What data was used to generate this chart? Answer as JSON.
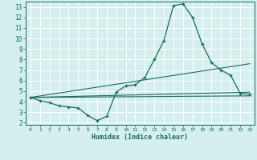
{
  "xlabel": "Humidex (Indice chaleur)",
  "bg_color": "#d5efee",
  "grid_color": "#ffffff",
  "line_color": "#1a6b5e",
  "xlim": [
    -0.5,
    23.5
  ],
  "ylim": [
    1.8,
    13.5
  ],
  "xticks": [
    0,
    1,
    2,
    3,
    4,
    5,
    6,
    7,
    8,
    9,
    10,
    11,
    12,
    13,
    14,
    15,
    16,
    17,
    18,
    19,
    20,
    21,
    22,
    23
  ],
  "yticks": [
    2,
    3,
    4,
    5,
    6,
    7,
    8,
    9,
    10,
    11,
    12,
    13
  ],
  "line1_x": [
    0,
    1,
    2,
    3,
    4,
    5,
    6,
    7,
    8,
    9,
    10,
    11,
    12,
    13,
    14,
    15,
    16,
    17,
    18,
    19,
    20,
    21,
    22,
    23
  ],
  "line1_y": [
    4.4,
    4.1,
    3.9,
    3.6,
    3.5,
    3.4,
    2.7,
    2.2,
    2.6,
    4.9,
    5.5,
    5.6,
    6.3,
    8.0,
    9.8,
    13.1,
    13.3,
    12.0,
    9.5,
    7.7,
    7.0,
    6.5,
    4.8,
    4.7
  ],
  "line2_x": [
    0,
    23
  ],
  "line2_y": [
    4.4,
    4.9
  ],
  "line3_x": [
    0,
    23
  ],
  "line3_y": [
    4.4,
    7.6
  ],
  "line4_x": [
    0,
    23
  ],
  "line4_y": [
    4.4,
    4.55
  ]
}
